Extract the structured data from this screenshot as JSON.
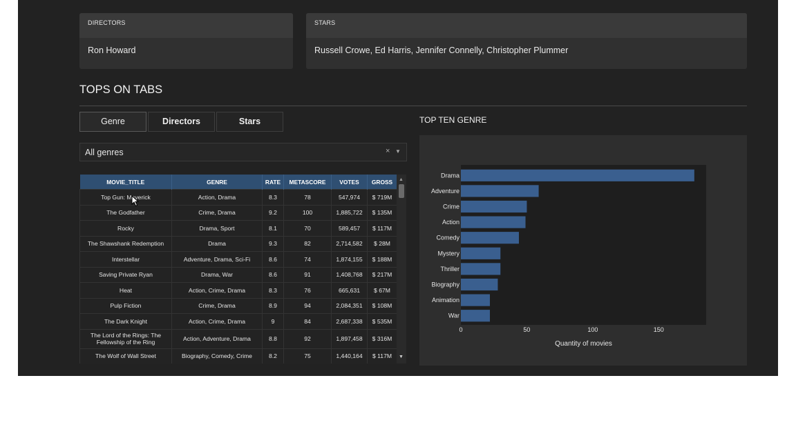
{
  "cards": {
    "directors": {
      "label": "DIRECTORS",
      "value": "Ron Howard"
    },
    "stars": {
      "label": "STARS",
      "value": "Russell Crowe, Ed Harris, Jennifer Connelly, Christopher Plummer"
    }
  },
  "section_title": "TOPS ON TABS",
  "tabs": [
    {
      "label": "Genre"
    },
    {
      "label": "Directors"
    },
    {
      "label": "Stars"
    }
  ],
  "dropdown": {
    "value": "All genres",
    "clear": "×",
    "caret": "▼"
  },
  "table": {
    "columns": [
      "MOVIE_TITLE",
      "GENRE",
      "RATE",
      "METASCORE",
      "VOTES",
      "GROSS"
    ],
    "rows": [
      [
        "Top Gun: Maverick",
        "Action, Drama",
        "8.3",
        "78",
        "547,974",
        "$ 719M"
      ],
      [
        "The Godfather",
        "Crime, Drama",
        "9.2",
        "100",
        "1,885,722",
        "$ 135M"
      ],
      [
        "Rocky",
        "Drama, Sport",
        "8.1",
        "70",
        "589,457",
        "$ 117M"
      ],
      [
        "The Shawshank Redemption",
        "Drama",
        "9.3",
        "82",
        "2,714,582",
        "$ 28M"
      ],
      [
        "Interstellar",
        "Adventure, Drama, Sci-Fi",
        "8.6",
        "74",
        "1,874,155",
        "$ 188M"
      ],
      [
        "Saving Private Ryan",
        "Drama, War",
        "8.6",
        "91",
        "1,408,768",
        "$ 217M"
      ],
      [
        "Heat",
        "Action, Crime, Drama",
        "8.3",
        "76",
        "665,631",
        "$ 67M"
      ],
      [
        "Pulp Fiction",
        "Crime, Drama",
        "8.9",
        "94",
        "2,084,351",
        "$ 108M"
      ],
      [
        "The Dark Knight",
        "Action, Crime, Drama",
        "9",
        "84",
        "2,687,338",
        "$ 535M"
      ],
      [
        "The Lord of the Rings: The Fellowship of the Ring",
        "Action, Adventure, Drama",
        "8.8",
        "92",
        "1,897,458",
        "$ 316M"
      ],
      [
        "The Wolf of Wall Street",
        "Biography, Comedy, Crime",
        "8.2",
        "75",
        "1,440,164",
        "$ 117M"
      ]
    ]
  },
  "scroll": {
    "up": "▲",
    "down": "▼"
  },
  "chart_title": "TOP TEN GENRE",
  "chart_data": {
    "type": "bar",
    "orientation": "horizontal",
    "categories": [
      "Drama",
      "Adventure",
      "Crime",
      "Action",
      "Comedy",
      "Mystery",
      "Thriller",
      "Biography",
      "Animation",
      "War"
    ],
    "values": [
      177,
      59,
      50,
      49,
      44,
      30,
      30,
      28,
      22,
      22
    ],
    "xlabel": "Quantity of movies",
    "ylabel": "",
    "xlim": [
      0,
      186
    ],
    "xticks": [
      0,
      50,
      100,
      150
    ],
    "bar_color": "#3a5f8f",
    "plot_bg": "#1e1e1e",
    "grid": false
  }
}
